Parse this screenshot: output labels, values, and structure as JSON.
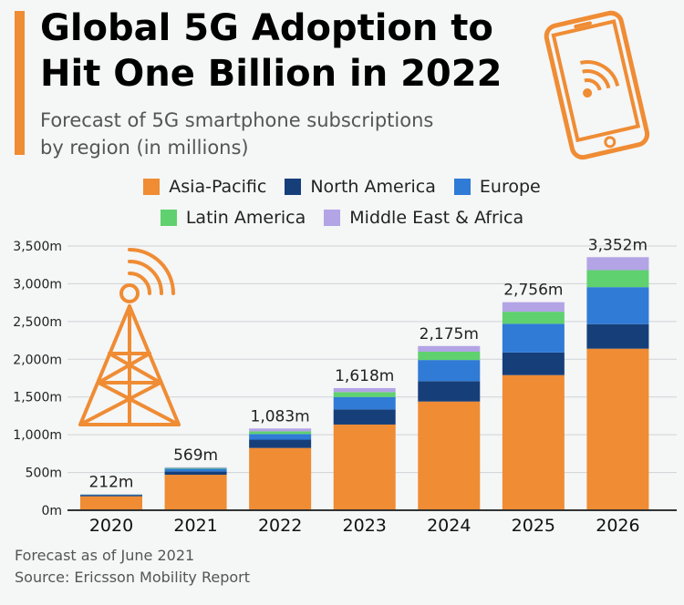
{
  "header": {
    "title_line1": "Global 5G Adoption to",
    "title_line2": "Hit One Billion in 2022",
    "subtitle_line1": "Forecast of 5G smartphone subscriptions",
    "subtitle_line2": "by region (in millions)"
  },
  "icons": {
    "phone": "smartphone-wifi-icon",
    "tower": "cell-tower-icon"
  },
  "colors": {
    "accent": "#ef8c34",
    "asia_pacific": "#ef8c34",
    "north_america": "#163f7a",
    "europe": "#2f7bd6",
    "latin_america": "#5fd16f",
    "middle_east_africa": "#b3a4e6",
    "axis": "#333333",
    "grid": "#cfd3d6"
  },
  "chart_data": {
    "type": "bar",
    "stacked": true,
    "categories": [
      "2020",
      "2021",
      "2022",
      "2023",
      "2024",
      "2025",
      "2026"
    ],
    "series": [
      {
        "name": "Asia-Pacific",
        "values": [
          185,
          470,
          825,
          1135,
          1440,
          1790,
          2140
        ]
      },
      {
        "name": "North America",
        "values": [
          15,
          45,
          110,
          200,
          270,
          300,
          325
        ]
      },
      {
        "name": "Europe",
        "values": [
          7,
          35,
          75,
          165,
          280,
          380,
          490
        ]
      },
      {
        "name": "Latin America",
        "values": [
          3,
          10,
          35,
          65,
          110,
          160,
          225
        ]
      },
      {
        "name": "Middle East & Africa",
        "values": [
          2,
          9,
          38,
          53,
          75,
          126,
          172
        ]
      }
    ],
    "totals": [
      212,
      569,
      1083,
      1618,
      2175,
      2756,
      3352
    ],
    "total_labels": [
      "212m",
      "569m",
      "1,083m",
      "1,618m",
      "2,175m",
      "2,756m",
      "3,352m"
    ],
    "y_ticks": [
      0,
      500,
      1000,
      1500,
      2000,
      2500,
      3000,
      3500
    ],
    "y_tick_labels": [
      "0m",
      "500m",
      "1,000m",
      "1,500m",
      "2,000m",
      "2,500m",
      "3,000m",
      "3,500m"
    ],
    "ylim": [
      0,
      3500
    ],
    "grid": true,
    "legend_position": "top"
  },
  "footer": {
    "note": "Forecast as of June 2021",
    "source": "Source: Ericsson Mobility Report"
  }
}
